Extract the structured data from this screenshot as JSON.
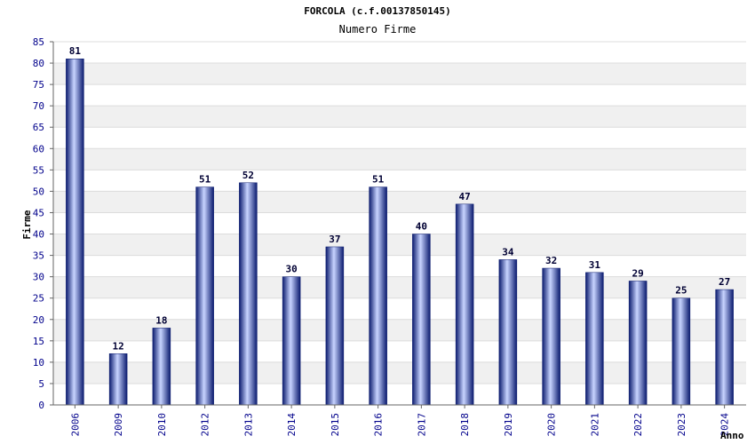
{
  "chart_data": {
    "type": "bar",
    "title": "FORCOLA (c.f.00137850145)",
    "subtitle": "Numero Firme",
    "xlabel": "Anno",
    "ylabel": "Firme",
    "ylim": [
      0,
      85
    ],
    "ytick_step": 5,
    "grid": true,
    "categories": [
      "2006",
      "2009",
      "2010",
      "2012",
      "2013",
      "2014",
      "2015",
      "2016",
      "2017",
      "2018",
      "2019",
      "2020",
      "2021",
      "2022",
      "2023",
      "2024"
    ],
    "values": [
      81,
      12,
      18,
      51,
      52,
      30,
      37,
      51,
      40,
      47,
      34,
      32,
      31,
      29,
      25,
      27
    ],
    "colors": {
      "bar_dark": "#0a1a6e",
      "bar_light": "#c8d4ff",
      "band": "#f0f0f0",
      "grid": "#dcdcdc",
      "axis": "#666666",
      "tick_text": "#00008b"
    }
  }
}
